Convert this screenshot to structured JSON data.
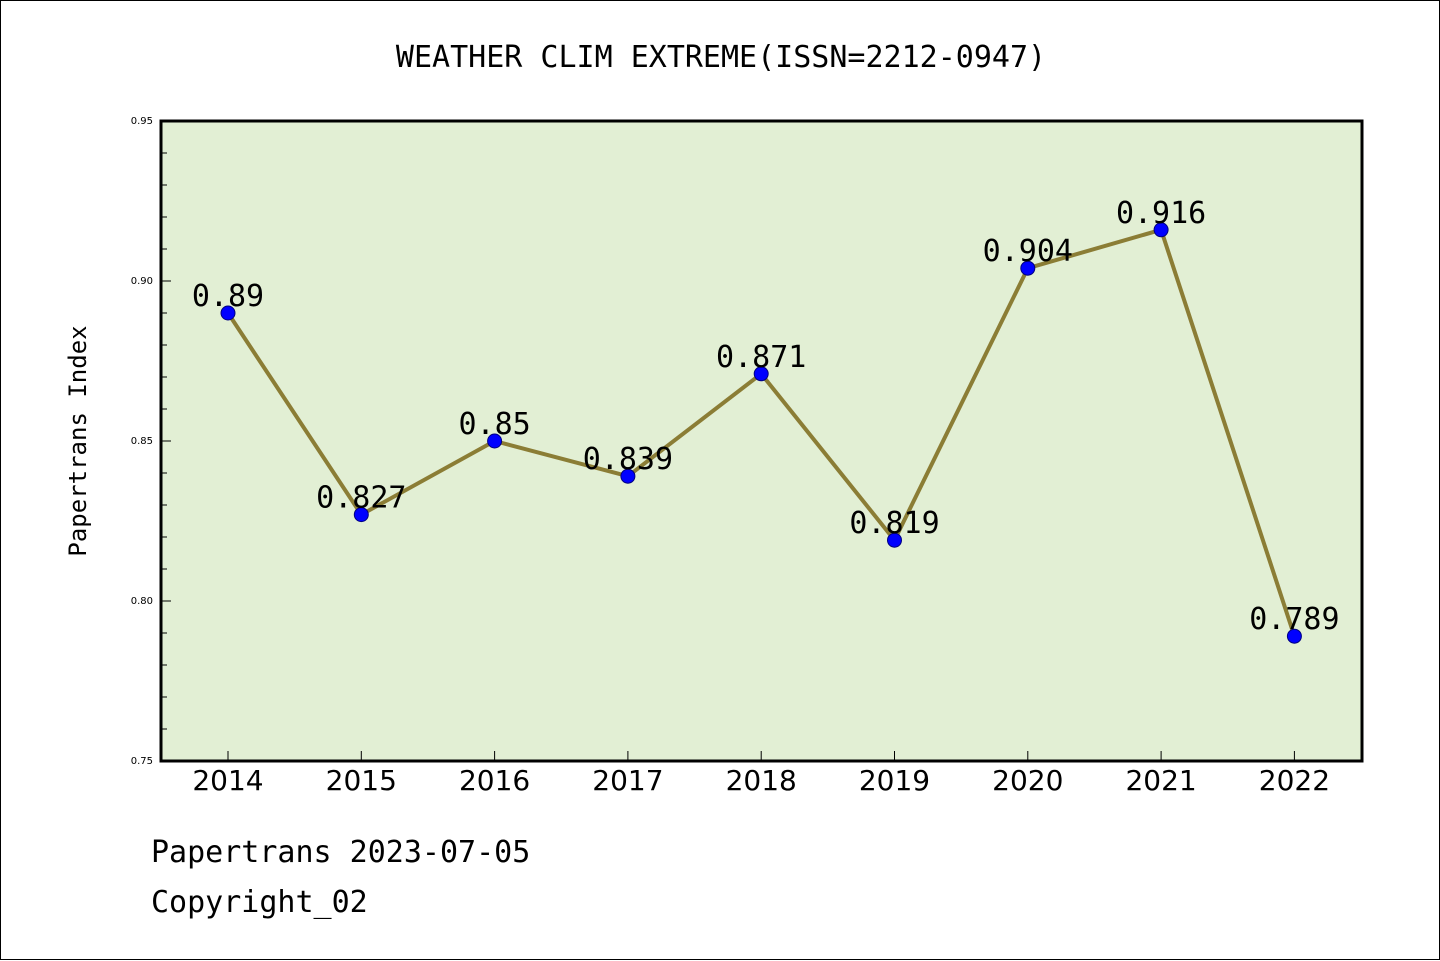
{
  "chart_data": {
    "type": "line",
    "title": "WEATHER CLIM EXTREME(ISSN=2212-0947)",
    "xlabel": "",
    "ylabel": "Papertrans Index",
    "categories": [
      "2014",
      "2015",
      "2016",
      "2017",
      "2018",
      "2019",
      "2020",
      "2021",
      "2022"
    ],
    "values": [
      0.89,
      0.827,
      0.85,
      0.839,
      0.871,
      0.819,
      0.904,
      0.916,
      0.789
    ],
    "data_labels": [
      "0.89",
      "0.827",
      "0.85",
      "0.839",
      "0.871",
      "0.819",
      "0.904",
      "0.916",
      "0.789"
    ],
    "ylim": [
      0.75,
      0.95
    ],
    "yticks": [
      "0.75",
      "0.80",
      "0.85",
      "0.90",
      "0.95"
    ],
    "grid": false,
    "colors": {
      "plot_background": "#e2efd4",
      "line": "#8b7d35",
      "marker": "#0000ff",
      "axes": "#000000"
    }
  },
  "footer": {
    "line1": "Papertrans 2023-07-05",
    "line2": "Copyright_02"
  }
}
